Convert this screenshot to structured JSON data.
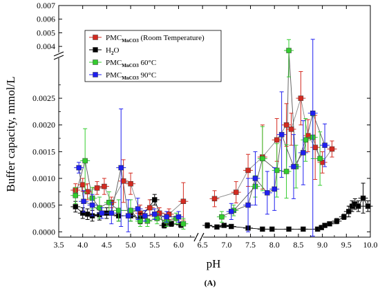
{
  "chart_data": {
    "type": "scatter",
    "panel_label": "(A)",
    "xlabel": "pH",
    "ylabel": "Buffer capacity, mmol/L",
    "xlim": [
      3.5,
      10.0
    ],
    "x_axis_break": [
      6.3,
      6.55
    ],
    "ylim_lower": [
      -0.0001,
      0.0032
    ],
    "ylim_upper": [
      0.0036,
      0.007
    ],
    "x_ticks": [
      "3.5",
      "4.0",
      "4.5",
      "5.0",
      "5.5",
      "6.0",
      "6.5",
      "7.0",
      "7.5",
      "8.0",
      "8.5",
      "9.0",
      "9.5",
      "10.0"
    ],
    "y_ticks_lower": [
      "0.0000",
      "0.0005",
      "0.0010",
      "0.0015",
      "0.0020",
      "0.0025"
    ],
    "y_ticks_upper": [
      "0.004",
      "0.005",
      "0.006",
      "0.007"
    ],
    "legend_position": "top-left",
    "series": [
      {
        "name": "PMC",
        "name_sub": "MnCO3",
        "name_suffix": " (Room Temperature)",
        "color": "#d42a20",
        "marker": "square",
        "line_color": "#888888",
        "x": [
          3.85,
          4.0,
          4.1,
          4.3,
          4.45,
          4.6,
          4.85,
          5.0,
          5.2,
          5.4,
          5.6,
          5.8,
          6.1,
          6.75,
          7.2,
          7.45,
          7.75,
          8.05,
          8.25,
          8.35,
          8.55,
          8.7,
          8.85,
          9.0,
          9.2
        ],
        "y": [
          0.00078,
          0.00088,
          0.00075,
          0.00082,
          0.00085,
          0.00055,
          0.00095,
          0.0009,
          0.00035,
          0.00045,
          0.00035,
          0.00033,
          0.00057,
          0.00062,
          0.00074,
          0.00115,
          0.0014,
          0.00172,
          0.002,
          0.00192,
          0.0025,
          0.0018,
          0.00158,
          0.0013,
          0.00155
        ],
        "err": [
          0.00012,
          0.00012,
          0.00015,
          0.00012,
          0.00015,
          0.0001,
          0.0004,
          0.0002,
          0.00015,
          0.00015,
          0.0001,
          0.0001,
          0.00035,
          0.00015,
          0.0002,
          0.0003,
          0.0006,
          0.0004,
          0.0004,
          0.0003,
          0.0005,
          0.0003,
          0.0006,
          0.0002,
          0.00015
        ]
      },
      {
        "name": "H",
        "name_sub": "2",
        "name_suffix": "O",
        "color": "#000000",
        "marker": "square",
        "line_color": "#000000",
        "x": [
          3.85,
          4.0,
          4.1,
          4.2,
          4.35,
          4.5,
          4.75,
          5.0,
          5.2,
          5.5,
          5.7,
          5.85,
          6.05,
          6.6,
          6.8,
          6.95,
          7.1,
          7.45,
          7.75,
          7.95,
          8.3,
          8.6,
          8.9,
          8.98,
          9.05,
          9.15,
          9.3,
          9.45,
          9.55,
          9.62,
          9.68,
          9.75,
          9.85,
          9.95
        ],
        "y": [
          0.00047,
          0.00035,
          0.00033,
          0.0003,
          0.00032,
          0.00035,
          0.0003,
          0.0003,
          0.00025,
          0.0006,
          0.00012,
          0.00015,
          0.00013,
          0.00012,
          9e-05,
          0.00012,
          0.0001,
          7e-05,
          5e-05,
          5e-05,
          5e-05,
          5e-05,
          5e-05,
          8e-05,
          0.00012,
          0.00015,
          0.0002,
          0.00028,
          0.00038,
          0.00048,
          0.00052,
          0.00048,
          0.00063,
          0.00048
        ],
        "err": [
          0.0001,
          0.0001,
          0.0001,
          0.0001,
          0.0001,
          0.0001,
          0.0001,
          0.0001,
          0.0001,
          0.0001,
          5e-05,
          5e-05,
          5e-05,
          5e-05,
          3e-05,
          3e-05,
          3e-05,
          3e-05,
          2e-05,
          2e-05,
          2e-05,
          2e-05,
          2e-05,
          3e-05,
          3e-05,
          3e-05,
          5e-05,
          5e-05,
          0.0001,
          0.0001,
          0.0001,
          0.0001,
          0.00028,
          0.0001
        ]
      },
      {
        "name": "PMC",
        "name_sub": "MnCO3",
        "name_suffix": " 60°C",
        "color": "#33cc2e",
        "marker": "square",
        "line_color": "#555555",
        "x": [
          3.85,
          4.05,
          4.2,
          4.35,
          4.55,
          4.75,
          5.0,
          5.2,
          5.35,
          5.55,
          5.75,
          5.95,
          6.1,
          6.9,
          7.15,
          7.6,
          7.75,
          8.05,
          8.25,
          8.3,
          8.45,
          8.65,
          8.8,
          8.95
        ],
        "y": [
          0.00068,
          0.00133,
          0.00063,
          0.00045,
          0.00055,
          0.0004,
          0.0004,
          0.0002,
          0.0002,
          0.00025,
          0.0002,
          0.00025,
          0.00015,
          0.00028,
          0.0004,
          0.00085,
          0.00137,
          0.00115,
          0.00113,
          0.0037,
          0.00122,
          0.00172,
          0.00177,
          0.00137
        ],
        "err": [
          0.00015,
          0.0006,
          0.0002,
          0.0002,
          0.0002,
          0.0002,
          0.0002,
          0.0001,
          0.0001,
          0.0001,
          0.0001,
          0.0001,
          0.0001,
          0.0001,
          0.0001,
          0.0002,
          0.0006,
          0.0005,
          0.0005,
          0.0008,
          0.0004,
          0.0004,
          0.0004,
          0.0005
        ]
      },
      {
        "name": "PMC",
        "name_sub": "MnCO3",
        "name_suffix": " 90°C",
        "color": "#1f1ff0",
        "marker": "square",
        "line_color": "#555555",
        "x": [
          3.92,
          4.02,
          4.2,
          4.4,
          4.6,
          4.8,
          4.95,
          5.15,
          5.3,
          5.5,
          5.75,
          6.0,
          7.1,
          7.45,
          7.6,
          7.85,
          8.0,
          8.15,
          8.4,
          8.6,
          8.8,
          9.05
        ],
        "y": [
          0.0012,
          0.00057,
          0.0005,
          0.00035,
          0.00035,
          0.0012,
          0.0003,
          0.00043,
          0.0003,
          0.00033,
          0.00028,
          0.00028,
          0.00038,
          0.0005,
          0.001,
          0.00073,
          0.0008,
          0.00182,
          0.00122,
          0.00148,
          0.00222,
          0.00162
        ],
        "err": [
          0.0001,
          0.0002,
          0.0002,
          0.0001,
          0.0002,
          0.0011,
          0.0003,
          0.0002,
          0.0001,
          0.0001,
          0.0001,
          0.0001,
          0.00015,
          0.0005,
          0.0005,
          0.0004,
          0.0004,
          0.0008,
          0.0006,
          0.0006,
          0.0023,
          0.0004
        ]
      }
    ]
  }
}
